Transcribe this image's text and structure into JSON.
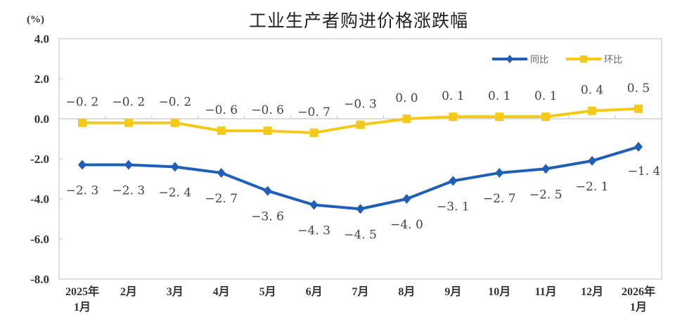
{
  "chart_data": {
    "type": "line",
    "title": "工业生产者购进价格涨跌幅",
    "ylabel": "(%)",
    "xlabel": "",
    "ylim": [
      -8.0,
      4.0
    ],
    "yticks": [
      "4.0",
      "2.0",
      "0.0",
      "-2.0",
      "-4.0",
      "-6.0",
      "-8.0"
    ],
    "grid": false,
    "legend_position": "top-right",
    "categories": [
      "2025年1月",
      "2月",
      "3月",
      "4月",
      "5月",
      "6月",
      "7月",
      "8月",
      "9月",
      "10月",
      "11月",
      "12月",
      "2026年1月"
    ],
    "category_lines": [
      [
        "2025年",
        "1月"
      ],
      [
        "2月"
      ],
      [
        "3月"
      ],
      [
        "4月"
      ],
      [
        "5月"
      ],
      [
        "6月"
      ],
      [
        "7月"
      ],
      [
        "8月"
      ],
      [
        "9月"
      ],
      [
        "10月"
      ],
      [
        "11月"
      ],
      [
        "12月"
      ],
      [
        "2026年",
        "1月"
      ]
    ],
    "series": [
      {
        "name": "同比",
        "color": "#1f5fb8",
        "marker": "diamond",
        "values": [
          -2.3,
          -2.3,
          -2.4,
          -2.7,
          -3.6,
          -4.3,
          -4.5,
          -4.0,
          -3.1,
          -2.7,
          -2.5,
          -2.1,
          -1.4
        ],
        "labels": [
          "−2. 3",
          "−2. 3",
          "−2. 4",
          "−2. 7",
          "−3. 6",
          "−4. 3",
          "−4. 5",
          "−4. 0",
          "−3. 1",
          "−2. 7",
          "−2. 5",
          "−2. 1",
          "−1. 4"
        ]
      },
      {
        "name": "环比",
        "color": "#f5c918",
        "marker": "square",
        "values": [
          -0.2,
          -0.2,
          -0.2,
          -0.6,
          -0.6,
          -0.7,
          -0.3,
          0.0,
          0.1,
          0.1,
          0.1,
          0.4,
          0.5
        ],
        "labels": [
          "−0. 2",
          "−0. 2",
          "−0. 2",
          "−0. 6",
          "−0. 6",
          "−0. 7",
          "−0. 3",
          "0. 0",
          "0. 1",
          "0. 1",
          "0. 1",
          "0. 4",
          "0. 5"
        ]
      }
    ]
  }
}
